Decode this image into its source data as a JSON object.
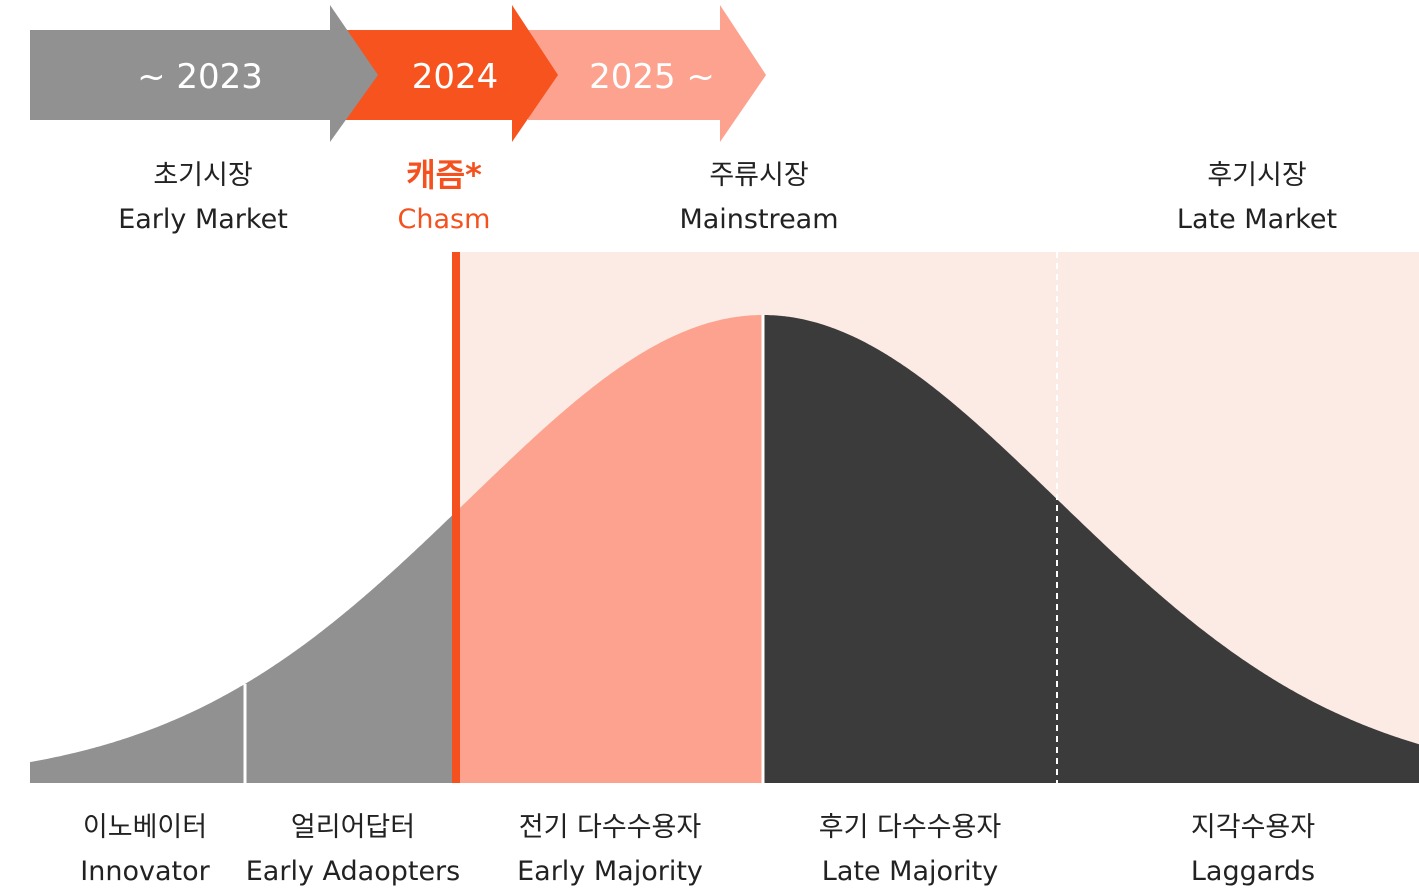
{
  "timeline": [
    "~ 2023",
    "2024",
    "2025 ~"
  ],
  "markets": [
    {
      "ko": "초기시장",
      "en": "Early Market"
    },
    {
      "ko": "캐즘*",
      "en": "Chasm"
    },
    {
      "ko": "주류시장",
      "en": "Mainstream"
    },
    {
      "ko": "후기시장",
      "en": "Late Market"
    }
  ],
  "adopters": [
    {
      "ko": "이노베이터",
      "en": "Innovator"
    },
    {
      "ko": "얼리어답터",
      "en": "Early Adaopters"
    },
    {
      "ko": "전기 다수수용자",
      "en": "Early Majority"
    },
    {
      "ko": "후기 다수수용자",
      "en": "Late Majority"
    },
    {
      "ko": "지각수용자",
      "en": "Laggards"
    }
  ]
}
